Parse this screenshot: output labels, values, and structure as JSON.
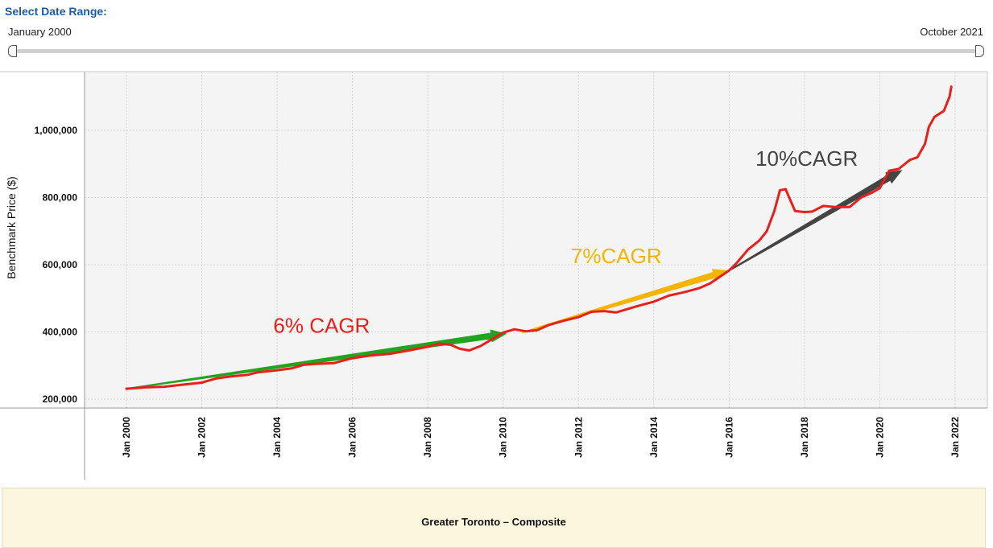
{
  "filter": {
    "header": "Select Date Range:",
    "start_label": "January 2000",
    "end_label": "October 2021",
    "range_start_fraction": 0,
    "range_end_fraction": 1
  },
  "caption": "Greater Toronto – Composite",
  "chart_data": {
    "type": "line",
    "title": "",
    "xlabel": "",
    "ylabel": "Benchmark Price ($)",
    "xlim": [
      2000.0,
      2022.3
    ],
    "ylim": [
      185000,
      1200000
    ],
    "grid": true,
    "x_ticks": [
      {
        "value": 2000,
        "label": "Jan 2000"
      },
      {
        "value": 2002,
        "label": "Jan 2002"
      },
      {
        "value": 2004,
        "label": "Jan 2004"
      },
      {
        "value": 2006,
        "label": "Jan 2006"
      },
      {
        "value": 2008,
        "label": "Jan 2008"
      },
      {
        "value": 2010,
        "label": "Jan 2010"
      },
      {
        "value": 2012,
        "label": "Jan 2012"
      },
      {
        "value": 2014,
        "label": "Jan 2014"
      },
      {
        "value": 2016,
        "label": "Jan 2016"
      },
      {
        "value": 2018,
        "label": "Jan 2018"
      },
      {
        "value": 2020,
        "label": "Jan 2020"
      },
      {
        "value": 2022,
        "label": "Jan 2022"
      }
    ],
    "y_ticks": [
      {
        "value": 200000,
        "label": "200,000"
      },
      {
        "value": 400000,
        "label": "400,000"
      },
      {
        "value": 600000,
        "label": "600,000"
      },
      {
        "value": 800000,
        "label": "800,000"
      },
      {
        "value": 1000000,
        "label": "1,000,000"
      }
    ],
    "series": [
      {
        "color": "#e8201c",
        "points": [
          [
            2000.0,
            231000
          ],
          [
            2000.5,
            235000
          ],
          [
            2001.0,
            237000
          ],
          [
            2001.5,
            243000
          ],
          [
            2002.0,
            249000
          ],
          [
            2002.4,
            262000
          ],
          [
            2002.8,
            268000
          ],
          [
            2003.2,
            272000
          ],
          [
            2003.5,
            280000
          ],
          [
            2004.0,
            286000
          ],
          [
            2004.4,
            292000
          ],
          [
            2004.7,
            302000
          ],
          [
            2005.0,
            305000
          ],
          [
            2005.5,
            307000
          ],
          [
            2006.0,
            322000
          ],
          [
            2006.5,
            330000
          ],
          [
            2007.0,
            335000
          ],
          [
            2007.5,
            345000
          ],
          [
            2008.0,
            356000
          ],
          [
            2008.3,
            365000
          ],
          [
            2008.6,
            362000
          ],
          [
            2008.85,
            350000
          ],
          [
            2009.1,
            345000
          ],
          [
            2009.4,
            358000
          ],
          [
            2009.7,
            378000
          ],
          [
            2010.0,
            398000
          ],
          [
            2010.3,
            408000
          ],
          [
            2010.6,
            402000
          ],
          [
            2010.9,
            405000
          ],
          [
            2011.2,
            420000
          ],
          [
            2011.6,
            433000
          ],
          [
            2012.0,
            444000
          ],
          [
            2012.35,
            460000
          ],
          [
            2012.7,
            462000
          ],
          [
            2013.0,
            458000
          ],
          [
            2013.3,
            468000
          ],
          [
            2013.6,
            478000
          ],
          [
            2014.0,
            490000
          ],
          [
            2014.4,
            508000
          ],
          [
            2014.8,
            518000
          ],
          [
            2015.2,
            530000
          ],
          [
            2015.5,
            545000
          ],
          [
            2016.0,
            583000
          ],
          [
            2016.2,
            605000
          ],
          [
            2016.5,
            645000
          ],
          [
            2016.8,
            672000
          ],
          [
            2017.0,
            700000
          ],
          [
            2017.2,
            760000
          ],
          [
            2017.35,
            822000
          ],
          [
            2017.5,
            825000
          ],
          [
            2017.75,
            760000
          ],
          [
            2018.0,
            757000
          ],
          [
            2018.2,
            758000
          ],
          [
            2018.5,
            775000
          ],
          [
            2018.8,
            772000
          ],
          [
            2019.2,
            772000
          ],
          [
            2019.5,
            800000
          ],
          [
            2019.8,
            815000
          ],
          [
            2020.0,
            828000
          ],
          [
            2020.25,
            880000
          ],
          [
            2020.5,
            885000
          ],
          [
            2020.8,
            912000
          ],
          [
            2021.0,
            920000
          ],
          [
            2021.2,
            960000
          ],
          [
            2021.3,
            1010000
          ],
          [
            2021.45,
            1040000
          ],
          [
            2021.7,
            1058000
          ],
          [
            2021.85,
            1100000
          ],
          [
            2021.9,
            1130000
          ]
        ]
      }
    ],
    "annotations": [
      {
        "text": "6% CAGR",
        "color": "#e8201c",
        "x": 2003.9,
        "y": 398000,
        "arrow_from": [
          2000.0,
          231000
        ],
        "arrow_to": [
          2010.1,
          395000
        ],
        "arrow_color": "#22a322"
      },
      {
        "text": "7%CAGR",
        "color": "#f4b400",
        "x": 2011.8,
        "y": 605000,
        "arrow_from": [
          2010.5,
          398000
        ],
        "arrow_to": [
          2016.0,
          583000
        ],
        "arrow_color": "#f4b400"
      },
      {
        "text": "10%CAGR",
        "color": "#444444",
        "x": 2016.7,
        "y": 895000,
        "arrow_from": [
          2016.0,
          583000
        ],
        "arrow_to": [
          2020.6,
          882000
        ],
        "arrow_color": "#444444"
      }
    ]
  }
}
